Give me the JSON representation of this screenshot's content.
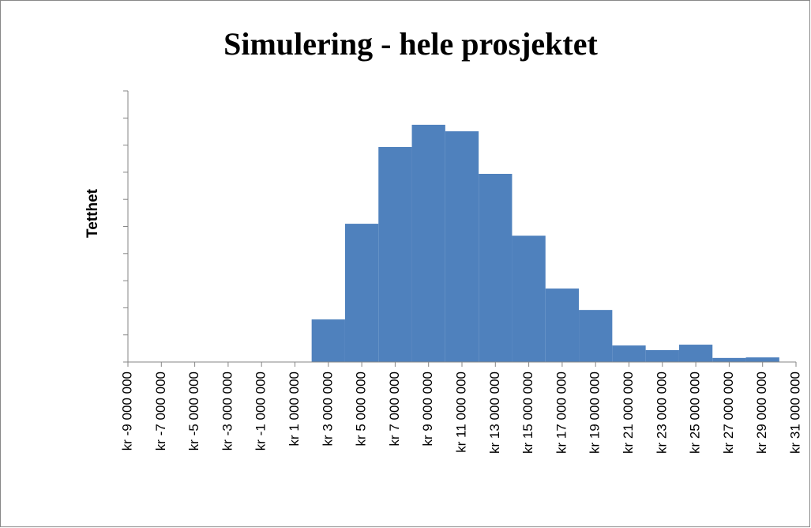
{
  "chart_data": {
    "type": "histogram",
    "title": "Simulering - hele prosjektet",
    "y_label": "Tetthet",
    "bins": [
      2000000,
      4000000,
      6000000,
      8000000,
      10000000,
      12000000,
      14000000,
      16000000,
      18000000,
      20000000,
      22000000,
      24000000,
      26000000,
      28000000,
      30000000
    ],
    "values": [
      1.57,
      5.1,
      7.93,
      8.75,
      8.51,
      6.94,
      4.66,
      2.71,
      1.92,
      0.61,
      0.44,
      0.64,
      0.15,
      0.17
    ],
    "color": "#4f81bd",
    "xlim": [
      -9000000,
      31000000
    ],
    "xticks": [
      {
        "value": -9000000,
        "label": "kr -9 000 000"
      },
      {
        "value": -7000000,
        "label": "kr -7 000 000"
      },
      {
        "value": -5000000,
        "label": "kr -5 000 000"
      },
      {
        "value": -3000000,
        "label": "kr -3 000 000"
      },
      {
        "value": -1000000,
        "label": "kr -1 000 000"
      },
      {
        "value": 1000000,
        "label": "kr 1 000 000"
      },
      {
        "value": 3000000,
        "label": "kr 3 000 000"
      },
      {
        "value": 5000000,
        "label": "kr 5 000 000"
      },
      {
        "value": 7000000,
        "label": "kr 7 000 000"
      },
      {
        "value": 9000000,
        "label": "kr 9 000 000"
      },
      {
        "value": 11000000,
        "label": "kr 11 000 000"
      },
      {
        "value": 13000000,
        "label": "kr 13 000 000"
      },
      {
        "value": 15000000,
        "label": "kr 15 000 000"
      },
      {
        "value": 17000000,
        "label": "kr 17 000 000"
      },
      {
        "value": 19000000,
        "label": "kr 19 000 000"
      },
      {
        "value": 21000000,
        "label": "kr 21 000 000"
      },
      {
        "value": 23000000,
        "label": "kr 23 000 000"
      },
      {
        "value": 25000000,
        "label": "kr 25 000 000"
      },
      {
        "value": 27000000,
        "label": "kr 27 000 000"
      },
      {
        "value": 29000000,
        "label": "kr 29 000 000"
      },
      {
        "value": 31000000,
        "label": "kr 31 000 000"
      }
    ],
    "ylim": [
      0,
      10
    ],
    "yticks": [
      0,
      1,
      2,
      3,
      4,
      5,
      6,
      7,
      8,
      9,
      10
    ]
  }
}
